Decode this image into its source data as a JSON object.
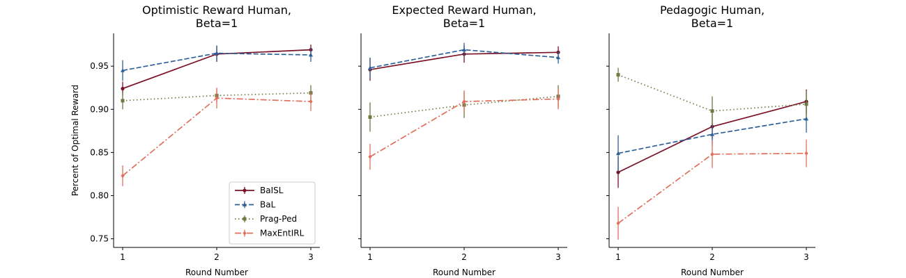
{
  "chart_data": [
    {
      "type": "line",
      "title": [
        "Optimistic Reward Human,",
        "Beta=1"
      ],
      "xlabel": "Round Number",
      "ylabel": "Percent of Optimal Reward",
      "x": [
        1,
        2,
        3
      ],
      "xticks": [
        "1",
        "2",
        "3"
      ],
      "yticks": [
        "0.75",
        "0.80",
        "0.85",
        "0.90",
        "0.95"
      ],
      "ylim": [
        0.74,
        0.988
      ],
      "legend": "lower-right",
      "series": [
        {
          "name": "BaISL",
          "values": [
            0.924,
            0.964,
            0.969
          ],
          "err": [
            0.008,
            0.009,
            0.006
          ]
        },
        {
          "name": "BaL",
          "values": [
            0.945,
            0.965,
            0.963
          ],
          "err": [
            0.012,
            0.009,
            0.008
          ]
        },
        {
          "name": "Prag-Ped",
          "values": [
            0.91,
            0.916,
            0.919
          ],
          "err": [
            0.01,
            0.008,
            0.009
          ]
        },
        {
          "name": "MaxEntIRL",
          "values": [
            0.823,
            0.913,
            0.909
          ],
          "err": [
            0.012,
            0.012,
            0.011
          ]
        }
      ]
    },
    {
      "type": "line",
      "title": [
        "Expected Reward Human,",
        "Beta=1"
      ],
      "xlabel": "Round Number",
      "ylabel": "",
      "x": [
        1,
        2,
        3
      ],
      "xticks": [
        "1",
        "2",
        "3"
      ],
      "yticks": [],
      "ylim": [
        0.74,
        0.988
      ],
      "series": [
        {
          "name": "BaISL",
          "values": [
            0.946,
            0.964,
            0.966
          ],
          "err": [
            0.013,
            0.01,
            0.007
          ]
        },
        {
          "name": "BaL",
          "values": [
            0.948,
            0.969,
            0.96
          ],
          "err": [
            0.012,
            0.008,
            0.007
          ]
        },
        {
          "name": "Prag-Ped",
          "values": [
            0.891,
            0.905,
            0.915
          ],
          "err": [
            0.017,
            0.015,
            0.013
          ]
        },
        {
          "name": "MaxEntIRL",
          "values": [
            0.845,
            0.909,
            0.912
          ],
          "err": [
            0.015,
            0.013,
            0.012
          ]
        }
      ]
    },
    {
      "type": "line",
      "title": [
        "Pedagogic Human,",
        "Beta=1"
      ],
      "xlabel": "Round Number",
      "ylabel": "",
      "x": [
        1,
        2,
        3
      ],
      "xticks": [
        "1",
        "2",
        "3"
      ],
      "yticks": [],
      "ylim": [
        0.74,
        0.988
      ],
      "series": [
        {
          "name": "BaISL",
          "values": [
            0.827,
            0.88,
            0.909
          ],
          "err": [
            0.018,
            0.015,
            0.014
          ]
        },
        {
          "name": "BaL",
          "values": [
            0.849,
            0.871,
            0.889
          ],
          "err": [
            0.021,
            0.013,
            0.016
          ]
        },
        {
          "name": "Prag-Ped",
          "values": [
            0.94,
            0.898,
            0.906
          ],
          "err": [
            0.008,
            0.017,
            0.015
          ]
        },
        {
          "name": "MaxEntIRL",
          "values": [
            0.768,
            0.848,
            0.849
          ],
          "err": [
            0.019,
            0.016,
            0.016
          ]
        }
      ]
    }
  ],
  "series_styles": [
    {
      "color": "#7a1126",
      "dash": "",
      "marker": "circle"
    },
    {
      "color": "#2e6098",
      "dash": "7,3",
      "marker": "triangle"
    },
    {
      "color": "#6b7a41",
      "dash": "1.5,3.5",
      "marker": "square"
    },
    {
      "color": "#e0705c",
      "dash": "9,3,2,3",
      "marker": "diamond"
    }
  ]
}
